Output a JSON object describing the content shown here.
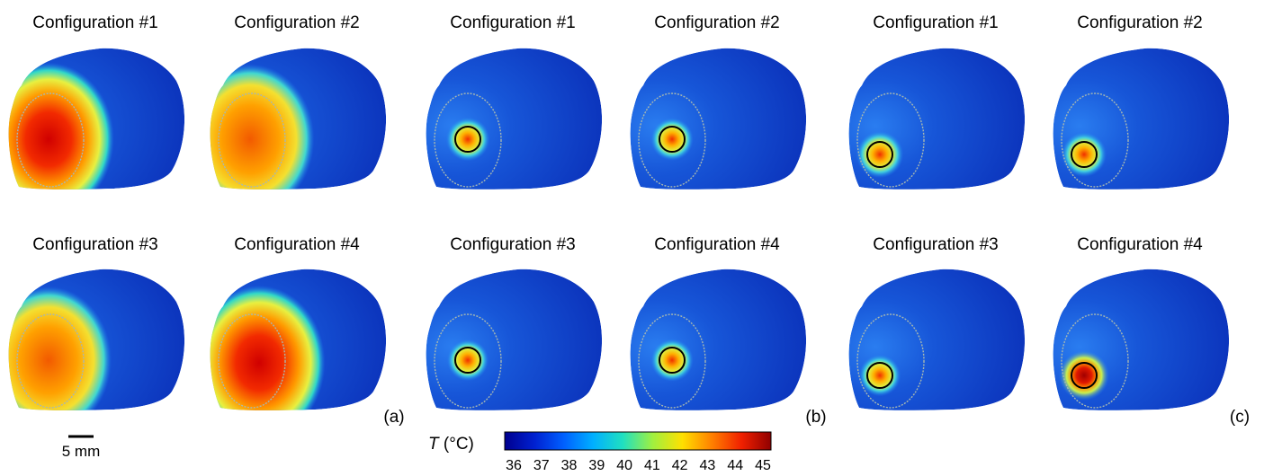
{
  "figure": {
    "panels": [
      {
        "label": "(a)",
        "cells": [
          {
            "title": "Configuration #1",
            "heat": "broad",
            "level": 0.95
          },
          {
            "title": "Configuration #2",
            "heat": "broad",
            "level": 0.85
          },
          {
            "title": "Configuration #3",
            "heat": "broad",
            "level": 0.75
          },
          {
            "title": "Configuration #4",
            "heat": "broad",
            "level": 1.0
          }
        ]
      },
      {
        "label": "(b)",
        "cells": [
          {
            "title": "Configuration #1",
            "heat": "spot",
            "level": 0.7
          },
          {
            "title": "Configuration #2",
            "heat": "spot",
            "level": 0.65
          },
          {
            "title": "Configuration #3",
            "heat": "spot",
            "level": 0.6
          },
          {
            "title": "Configuration #4",
            "heat": "spot",
            "level": 0.65
          }
        ]
      },
      {
        "label": "(c)",
        "cells": [
          {
            "title": "Configuration #1",
            "heat": "spot-low",
            "level": 0.85
          },
          {
            "title": "Configuration #2",
            "heat": "spot-low",
            "level": 0.75
          },
          {
            "title": "Configuration #3",
            "heat": "spot-low",
            "level": 0.6
          },
          {
            "title": "Configuration #4",
            "heat": "spot-low",
            "level": 1.0
          }
        ]
      }
    ],
    "scale_bar": {
      "label": "5 mm"
    },
    "colorbar": {
      "title_symbol": "T",
      "title_unit": " (°C)",
      "ticks": [
        "36",
        "37",
        "38",
        "39",
        "40",
        "41",
        "42",
        "43",
        "44",
        "45"
      ],
      "colors": [
        "#00008f",
        "#0020d0",
        "#0060ff",
        "#00b0ff",
        "#20e0c0",
        "#a0f040",
        "#ffe000",
        "#ff8000",
        "#f02000",
        "#900000"
      ]
    }
  }
}
